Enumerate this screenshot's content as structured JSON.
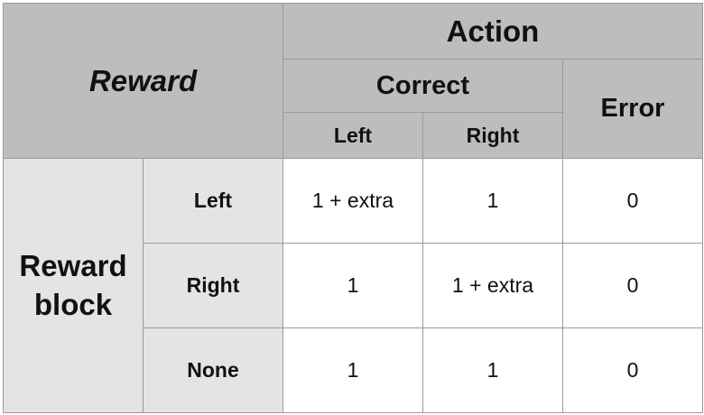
{
  "table": {
    "corner_label": "Reward",
    "action_label": "Action",
    "correct_label": "Correct",
    "error_label": "Error",
    "correct_sub": [
      "Left",
      "Right"
    ],
    "block_label_line1": "Reward",
    "block_label_line2": "block",
    "rows": [
      {
        "label": "Left",
        "cells": [
          "1 + extra",
          "1",
          "0"
        ]
      },
      {
        "label": "Right",
        "cells": [
          "1",
          "1 + extra",
          "0"
        ]
      },
      {
        "label": "None",
        "cells": [
          "1",
          "1",
          "0"
        ]
      }
    ]
  },
  "colors": {
    "header_bg": "#bdbdbd",
    "side_bg": "#e4e4e4",
    "cell_bg": "#ffffff",
    "border": "#9a9a9a"
  }
}
